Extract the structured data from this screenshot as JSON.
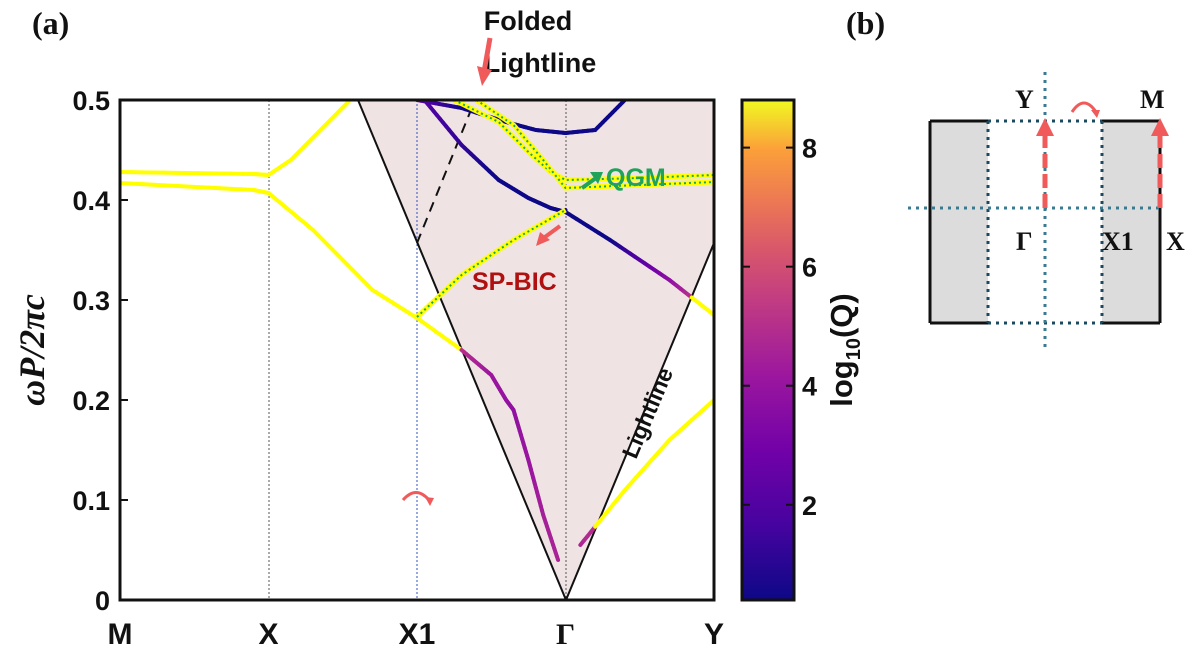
{
  "panel_a_label": "(a)",
  "panel_b_label": "(b)",
  "chart_data": {
    "type": "line",
    "title": "",
    "xlabel": "",
    "ylabel": "ωP/2πc",
    "ylim": [
      0,
      0.5
    ],
    "yticks": [
      "0",
      "0.1",
      "0.2",
      "0.3",
      "0.4",
      "0.5"
    ],
    "x_high_symmetry": [
      "M",
      "X",
      "X1",
      "Γ",
      "Y"
    ],
    "colorbar": {
      "label": "log10(Q)",
      "range": [
        0.4,
        8.8
      ],
      "ticks": [
        "2",
        "4",
        "6",
        "8"
      ],
      "colormap": "plasma"
    },
    "annotations": {
      "folded_lightline": "Folded Lightline",
      "lightline": "Lightline",
      "qgm": "QGM",
      "spbic": "SP-BIC"
    },
    "lightcone_fill": "#efe3e4",
    "band_high_q_color": "#ffff00",
    "series": [
      {
        "points": [
          [
            0,
            0.428
          ],
          [
            0.9,
            0.426
          ],
          [
            1.0,
            0.425
          ],
          [
            1.15,
            0.44
          ],
          [
            1.35,
            0.47
          ],
          [
            1.55,
            0.5
          ]
        ]
      },
      {
        "points": [
          [
            0,
            0.417
          ],
          [
            0.9,
            0.41
          ],
          [
            1.0,
            0.407
          ],
          [
            1.3,
            0.37
          ],
          [
            1.7,
            0.31
          ],
          [
            2.0,
            0.282
          ],
          [
            2.3,
            0.25
          ],
          [
            2.5,
            0.225
          ],
          [
            2.6,
            0.2
          ],
          [
            2.65,
            0.19
          ],
          [
            2.75,
            0.14
          ],
          [
            2.85,
            0.085
          ],
          [
            2.95,
            0.04
          ]
        ]
      },
      {
        "points": [
          [
            2.0,
            0.283
          ],
          [
            2.3,
            0.325
          ],
          [
            2.65,
            0.36
          ],
          [
            3.0,
            0.39
          ]
        ]
      },
      {
        "points": [
          [
            2.0,
            0.5
          ],
          [
            2.3,
            0.492
          ],
          [
            2.6,
            0.478
          ],
          [
            2.8,
            0.47
          ],
          [
            3.0,
            0.467
          ],
          [
            3.2,
            0.47
          ],
          [
            3.4,
            0.5
          ]
        ]
      },
      {
        "points": [
          [
            2.05,
            0.5
          ],
          [
            2.3,
            0.455
          ],
          [
            2.55,
            0.42
          ],
          [
            2.75,
            0.402
          ],
          [
            2.9,
            0.392
          ],
          [
            3.0,
            0.388
          ],
          [
            3.3,
            0.36
          ],
          [
            3.7,
            0.32
          ],
          [
            4.0,
            0.285
          ],
          [
            4.2,
            0.272
          ],
          [
            4.3,
            0.268
          ]
        ]
      },
      {
        "points": [
          [
            2.25,
            0.5
          ],
          [
            2.55,
            0.478
          ],
          [
            2.75,
            0.448
          ],
          [
            2.9,
            0.428
          ],
          [
            3.0,
            0.42
          ],
          [
            3.5,
            0.422
          ],
          [
            4.0,
            0.425
          ],
          [
            4.3,
            0.425
          ]
        ]
      },
      {
        "points": [
          [
            2.4,
            0.5
          ],
          [
            2.65,
            0.475
          ],
          [
            2.85,
            0.44
          ],
          [
            3.0,
            0.412
          ],
          [
            3.5,
            0.415
          ],
          [
            4.0,
            0.418
          ],
          [
            4.3,
            0.418
          ]
        ]
      },
      {
        "points": [
          [
            3.1,
            0.055
          ],
          [
            3.4,
            0.11
          ],
          [
            3.7,
            0.16
          ],
          [
            4.0,
            0.2
          ],
          [
            4.15,
            0.212
          ],
          [
            4.3,
            0.214
          ]
        ]
      }
    ]
  }
}
